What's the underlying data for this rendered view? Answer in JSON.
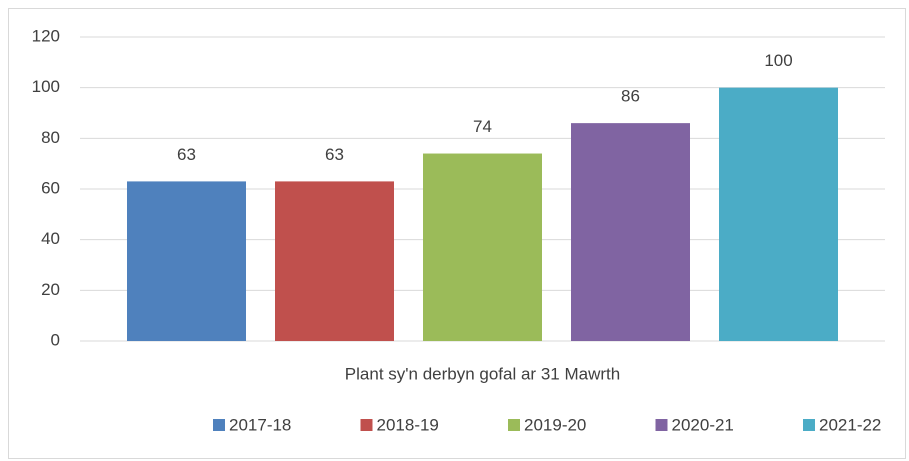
{
  "chart_data": {
    "type": "bar",
    "categories": [
      "Plant sy'n derbyn gofal ar 31 Mawrth"
    ],
    "series": [
      {
        "name": "2017-18",
        "color": "#4f81bd",
        "values": [
          63
        ]
      },
      {
        "name": "2018-19",
        "color": "#c0504d",
        "values": [
          63
        ]
      },
      {
        "name": "2019-20",
        "color": "#9bbb59",
        "values": [
          74
        ]
      },
      {
        "name": "2020-21",
        "color": "#8064a2",
        "values": [
          86
        ]
      },
      {
        "name": "2021-22",
        "color": "#4bacc6",
        "values": [
          100
        ]
      }
    ],
    "ylim": [
      0,
      120
    ],
    "yticks": [
      0,
      20,
      40,
      60,
      80,
      100,
      120
    ],
    "grid": true,
    "legend": "bottom"
  }
}
